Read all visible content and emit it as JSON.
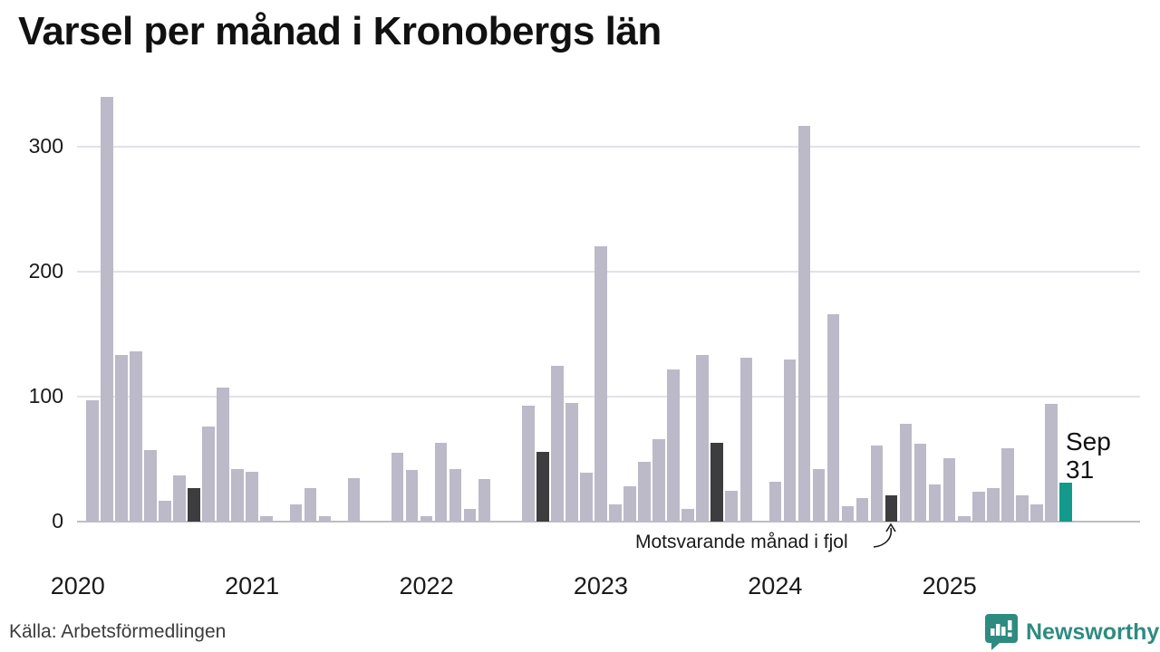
{
  "title": "Varsel per månad i Kronobergs län",
  "source": "Källa: Arbetsförmedlingen",
  "branding": {
    "name": "Newsworthy",
    "logo_icon": "speech-bubble-bar-chart-icon",
    "color": "#2e8b80"
  },
  "annotation": {
    "text": "Motsvarande månad i fjol",
    "target_month": "2024-09"
  },
  "current_label": {
    "line1": "Sep",
    "line2": "31"
  },
  "colors": {
    "bar_default": "#bcb9c8",
    "bar_september_last_years": "#3d3d3f",
    "bar_current_month": "#149a8b",
    "grid": "#e2e2e8",
    "axis": "#bdbdc6",
    "text": "#1a1a1a"
  },
  "chart_data": {
    "type": "bar",
    "title": "Varsel per månad i Kronobergs län",
    "xlabel": "",
    "ylabel": "",
    "ylim": [
      0,
      345
    ],
    "yticks": [
      0,
      100,
      200,
      300
    ],
    "grid": "horizontal",
    "years": [
      2020,
      2021,
      2022,
      2023,
      2024,
      2025
    ],
    "months": [
      "2020-01",
      "2020-02",
      "2020-03",
      "2020-04",
      "2020-05",
      "2020-06",
      "2020-07",
      "2020-08",
      "2020-09",
      "2020-10",
      "2020-11",
      "2020-12",
      "2021-01",
      "2021-02",
      "2021-03",
      "2021-04",
      "2021-05",
      "2021-06",
      "2021-07",
      "2021-08",
      "2021-09",
      "2021-10",
      "2021-11",
      "2021-12",
      "2022-01",
      "2022-02",
      "2022-03",
      "2022-04",
      "2022-05",
      "2022-06",
      "2022-07",
      "2022-08",
      "2022-09",
      "2022-10",
      "2022-11",
      "2022-12",
      "2023-01",
      "2023-02",
      "2023-03",
      "2023-04",
      "2023-05",
      "2023-06",
      "2023-07",
      "2023-08",
      "2023-09",
      "2023-10",
      "2023-11",
      "2023-12",
      "2024-01",
      "2024-02",
      "2024-03",
      "2024-04",
      "2024-05",
      "2024-06",
      "2024-07",
      "2024-08",
      "2024-09",
      "2024-10",
      "2024-11",
      "2024-12",
      "2025-01",
      "2025-02",
      "2025-03",
      "2025-04",
      "2025-05",
      "2025-06",
      "2025-07",
      "2025-08",
      "2025-09"
    ],
    "values": [
      null,
      97,
      340,
      133,
      136,
      57,
      17,
      37,
      27,
      76,
      107,
      42,
      40,
      4,
      0,
      14,
      27,
      4,
      0,
      35,
      0,
      0,
      55,
      41,
      4,
      63,
      42,
      10,
      34,
      0,
      0,
      93,
      56,
      125,
      95,
      39,
      220,
      14,
      28,
      48,
      66,
      122,
      10,
      133,
      63,
      25,
      131,
      0,
      32,
      130,
      317,
      42,
      166,
      12,
      19,
      61,
      21,
      78,
      62,
      30,
      51,
      4,
      24,
      27,
      59,
      21,
      14,
      94,
      31
    ],
    "bar_types": [
      "none",
      "default",
      "default",
      "default",
      "default",
      "default",
      "default",
      "default",
      "fjol",
      "default",
      "default",
      "default",
      "default",
      "default",
      "default",
      "default",
      "default",
      "default",
      "default",
      "default",
      "fjol",
      "default",
      "default",
      "default",
      "default",
      "default",
      "default",
      "default",
      "default",
      "default",
      "default",
      "default",
      "fjol",
      "default",
      "default",
      "default",
      "default",
      "default",
      "default",
      "default",
      "default",
      "default",
      "default",
      "default",
      "fjol",
      "default",
      "default",
      "default",
      "default",
      "default",
      "default",
      "default",
      "default",
      "default",
      "default",
      "default",
      "fjol",
      "default",
      "default",
      "default",
      "default",
      "default",
      "default",
      "default",
      "default",
      "default",
      "default",
      "default",
      "current"
    ],
    "legend_note": "fjol = september föregående år (mörk stapel), current = Sep 2025 (grön stapel)"
  }
}
